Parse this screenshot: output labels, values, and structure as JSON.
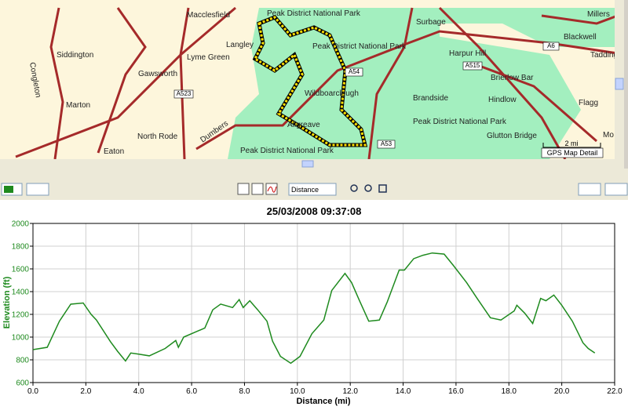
{
  "map": {
    "places": [
      "Macclesfield",
      "Peak District National Park",
      "Langley",
      "Peak District National Park",
      "Siddington",
      "Lyme Green",
      "Gawsworth",
      "Congleton",
      "Marton",
      "North Rode",
      "Eaton",
      "Dumbers",
      "Wildboarclough",
      "Allgreave",
      "Peak District National Park",
      "Surbage",
      "Harpur Hill",
      "Brandside",
      "Hindlow",
      "Brierlow Bar",
      "Blackwell",
      "Flagg",
      "Glutton Bridge",
      "Millers",
      "Tadding",
      "Peak District National Park",
      "Mo"
    ],
    "roads": [
      "A6",
      "A515",
      "A54",
      "A523",
      "A53"
    ],
    "scale": "2 mi",
    "caption": "GPS Map Detail"
  },
  "toolbar": {
    "x_axis_select": "Distance"
  },
  "chart_data": {
    "type": "line",
    "title": "25/03/2008 09:37:08",
    "x_label": "Distance (mi)",
    "y_label": "Elevation (ft)",
    "xlim": [
      0,
      22
    ],
    "ylim": [
      600,
      2000
    ],
    "xticks": [
      {
        "value": 0,
        "label": "0.0"
      },
      {
        "value": 2,
        "label": "2.0"
      },
      {
        "value": 4,
        "label": "4.0"
      },
      {
        "value": 6,
        "label": "6.0"
      },
      {
        "value": 8,
        "label": "8.0"
      },
      {
        "value": 10,
        "label": "10.0"
      },
      {
        "value": 12,
        "label": "12.0"
      },
      {
        "value": 14,
        "label": "14.0"
      },
      {
        "value": 16,
        "label": "16.0"
      },
      {
        "value": 18,
        "label": "18.0"
      },
      {
        "value": 20,
        "label": "20.0"
      },
      {
        "value": 22,
        "label": "22.0"
      }
    ],
    "yticks": [
      600,
      800,
      1000,
      1200,
      1400,
      1600,
      1800,
      2000
    ],
    "grid": true,
    "series": [
      {
        "name": "Elevation",
        "color": "#1e8a1e",
        "x": [
          0,
          0.54,
          1.0,
          1.43,
          1.9,
          2.2,
          2.4,
          2.93,
          3.2,
          3.5,
          3.7,
          4.0,
          4.4,
          5.0,
          5.4,
          5.5,
          5.7,
          6.1,
          6.5,
          6.8,
          7.1,
          7.55,
          7.8,
          7.95,
          8.2,
          8.5,
          8.85,
          9.06,
          9.36,
          9.75,
          10.1,
          10.55,
          11.0,
          11.3,
          11.8,
          12.05,
          12.35,
          12.7,
          13.1,
          13.4,
          13.85,
          14.05,
          14.4,
          14.75,
          15.1,
          15.55,
          15.9,
          16.4,
          16.8,
          17.3,
          17.7,
          18.2,
          18.3,
          18.6,
          18.9,
          19.2,
          19.4,
          19.7,
          20.0,
          20.4,
          20.8,
          21.0,
          21.25
        ],
        "values": [
          890,
          910,
          1140,
          1290,
          1300,
          1200,
          1150,
          960,
          875,
          790,
          860,
          850,
          835,
          900,
          970,
          910,
          1000,
          1040,
          1080,
          1240,
          1290,
          1260,
          1330,
          1260,
          1320,
          1240,
          1140,
          965,
          830,
          770,
          830,
          1030,
          1150,
          1410,
          1560,
          1480,
          1320,
          1140,
          1150,
          1310,
          1590,
          1590,
          1690,
          1720,
          1740,
          1730,
          1630,
          1480,
          1340,
          1170,
          1150,
          1230,
          1280,
          1210,
          1120,
          1340,
          1320,
          1370,
          1280,
          1140,
          950,
          900,
          860
        ]
      }
    ]
  }
}
